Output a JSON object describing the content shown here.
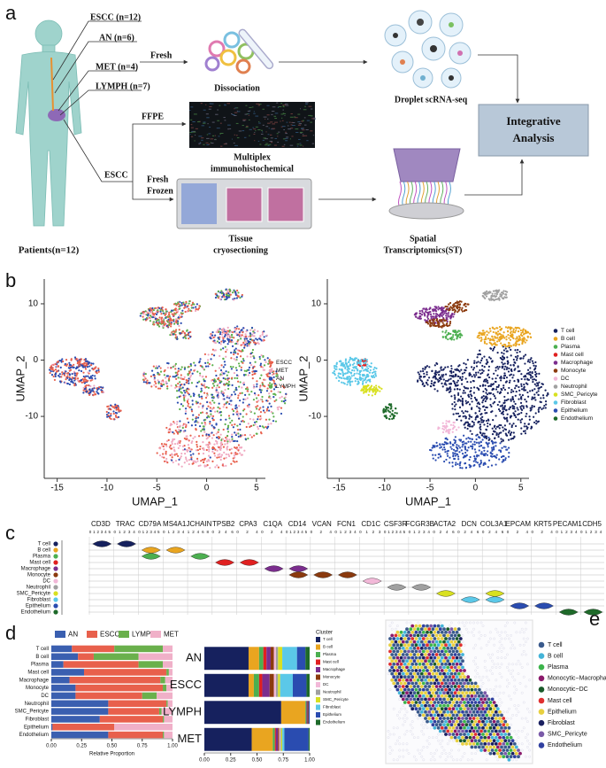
{
  "panel_labels": [
    "a",
    "b",
    "c",
    "d",
    "e"
  ],
  "panel_a": {
    "groups": [
      "ESCC (n=12)",
      "AN (n=6)",
      "MET (n=4)",
      "LYMPH (n=7)"
    ],
    "fresh": "Fresh",
    "dissociation": "Dissociation",
    "droplet": "Droplet scRNA-seq",
    "integrative": [
      "Integrative",
      "Analysis"
    ],
    "ffpe": "FFPE",
    "multiplex": [
      "Multiplex",
      "immunohistochemical"
    ],
    "escc": "ESCC",
    "fresh_frozen": [
      "Fresh",
      "Frozen"
    ],
    "tissue": [
      "Tissue",
      "cryosectioning"
    ],
    "spatial": [
      "Spatial",
      "Transcriptomics(ST)"
    ],
    "patients": "Patients(n=12)"
  },
  "chart_data": [
    {
      "type": "scatter",
      "xlabel": "UMAP_1",
      "ylabel": "UMAP_2",
      "xlim": [
        -16.3,
        5.9
      ],
      "ylim": [
        -21,
        14.4
      ],
      "xticks": [
        -15,
        -10,
        -5,
        0,
        5
      ],
      "yticks": [
        -10,
        0,
        10
      ],
      "legend": [
        {
          "name": "ESCC",
          "color": "#e8604c"
        },
        {
          "name": "MET",
          "color": "#f0a8c0"
        },
        {
          "name": "AN",
          "color": "#2a4cb0"
        },
        {
          "name": "LYMPH",
          "color": "#5cb04c"
        }
      ]
    },
    {
      "type": "scatter",
      "xlabel": "UMAP_1",
      "ylabel": "UMAP_2",
      "xlim": [
        -16.3,
        5.9
      ],
      "ylim": [
        -21,
        14.4
      ],
      "xticks": [
        -15,
        -10,
        -5,
        0,
        5
      ],
      "yticks": [
        -10,
        0,
        10
      ],
      "legend": [
        {
          "name": "T cell",
          "color": "#16215e"
        },
        {
          "name": "B cell",
          "color": "#e9a520"
        },
        {
          "name": "Plasma",
          "color": "#4caf50"
        },
        {
          "name": "Mast cell",
          "color": "#e02020"
        },
        {
          "name": "Macrophage",
          "color": "#7b2d8e"
        },
        {
          "name": "Monocyte",
          "color": "#8b3a0e"
        },
        {
          "name": "DC",
          "color": "#f2b8d8"
        },
        {
          "name": "Neutrophil",
          "color": "#a0a0a0"
        },
        {
          "name": "SMC_Pericyte",
          "color": "#d8e020"
        },
        {
          "name": "Fibroblast",
          "color": "#5bc8e8"
        },
        {
          "name": "Epithelium",
          "color": "#2a4cb0"
        },
        {
          "name": "Endothelium",
          "color": "#1e6a2a"
        }
      ]
    },
    {
      "type": "violin",
      "genes": [
        "CD3D",
        "TRAC",
        "CD79A",
        "MS4A1",
        "JCHAIN",
        "TPSB2",
        "CPA3",
        "C1QA",
        "CD14",
        "VCAN",
        "FCN1",
        "CD1C",
        "CSF3R",
        "FCGR3B",
        "ACTA2",
        "DCN",
        "COL3A1",
        "EPCAM",
        "KRT5",
        "PECAM1",
        "CDH5"
      ],
      "gene_ticks": [
        [
          0,
          1,
          2,
          3,
          4,
          5
        ],
        [
          0,
          1,
          2,
          3,
          4
        ],
        [
          0,
          1,
          2,
          3,
          4,
          5
        ],
        [
          0,
          1,
          2,
          3,
          4
        ],
        [
          1,
          2,
          4,
          6,
          8
        ],
        [
          0,
          2,
          4,
          6
        ],
        [
          0,
          2,
          4
        ],
        [
          0,
          2,
          4
        ],
        [
          0,
          1,
          2,
          3,
          4,
          5
        ],
        [
          0,
          2,
          4
        ],
        [
          0,
          1,
          2,
          3,
          4
        ],
        [
          0,
          1,
          2,
          3
        ],
        [
          0,
          1,
          2,
          3,
          4,
          5
        ],
        [
          0,
          1,
          2,
          3,
          4
        ],
        [
          0,
          2,
          4,
          6
        ],
        [
          0,
          2,
          4,
          6
        ],
        [
          0,
          2,
          4,
          6
        ],
        [
          0,
          2,
          4
        ],
        [
          0,
          2,
          4
        ],
        [
          0,
          1,
          2,
          3,
          4
        ],
        [
          0,
          1,
          2,
          3,
          4
        ]
      ],
      "cell_types": [
        "T cell",
        "B cell",
        "Plasma",
        "Mast cell",
        "Macrophage",
        "Monocyte",
        "DC",
        "Neutrophil",
        "SMC_Pericyte",
        "Fibroblast",
        "Epithelium",
        "Endothelium"
      ],
      "colors": [
        "#16215e",
        "#e9a520",
        "#4caf50",
        "#e02020",
        "#7b2d8e",
        "#8b3a0e",
        "#f2b8d8",
        "#a0a0a0",
        "#d8e020",
        "#5bc8e8",
        "#2a4cb0",
        "#1e6a2a"
      ]
    },
    {
      "type": "bar",
      "orientation": "horizontal",
      "stacked": true,
      "categories": [
        "T cell",
        "B cell",
        "Plasma",
        "Mast cell",
        "Macrophage",
        "Monocyte",
        "DC",
        "Neutrophil",
        "SMC_Pericyte",
        "Fibroblast",
        "Epithelium",
        "Endothelium"
      ],
      "series": [
        {
          "name": "AN",
          "color": "#3a5fb0",
          "values": [
            0.17,
            0.22,
            0.1,
            0.27,
            0.15,
            0.2,
            0.2,
            0.47,
            0.47,
            0.4,
            0.01,
            0.47
          ]
        },
        {
          "name": "ESCC",
          "color": "#e8604c",
          "values": [
            0.35,
            0.13,
            0.62,
            0.68,
            0.75,
            0.72,
            0.55,
            0.48,
            0.42,
            0.52,
            0.51,
            0.45
          ]
        },
        {
          "name": "LYMPH",
          "color": "#6ab04c",
          "values": [
            0.4,
            0.37,
            0.2,
            0.02,
            0.04,
            0.03,
            0.12,
            0.01,
            0.02,
            0.01,
            0.0,
            0.01
          ]
        },
        {
          "name": "MET",
          "color": "#f0b0c8",
          "values": [
            0.08,
            0.28,
            0.08,
            0.03,
            0.06,
            0.05,
            0.13,
            0.04,
            0.09,
            0.07,
            0.48,
            0.07
          ]
        }
      ],
      "xlim": [
        0,
        1
      ],
      "xticks": [
        {
          "value": 0,
          "label": "0.00"
        },
        {
          "value": 0.25,
          "label": "0.25"
        },
        {
          "value": 0.5,
          "label": "0.50"
        },
        {
          "value": 0.75,
          "label": "0.75"
        },
        {
          "value": 1,
          "label": "1.00"
        }
      ],
      "xlabel": "Relative Proportion"
    },
    {
      "type": "bar",
      "orientation": "horizontal",
      "stacked": true,
      "legend_title": "Cluster",
      "categories": [
        "AN",
        "ESCC",
        "LYMPH",
        "MET"
      ],
      "series": [
        {
          "name": "T cell",
          "color": "#16215e",
          "values": [
            0.42,
            0.42,
            0.73,
            0.45
          ]
        },
        {
          "name": "B cell",
          "color": "#e9a520",
          "values": [
            0.1,
            0.05,
            0.23,
            0.2
          ]
        },
        {
          "name": "Plasma",
          "color": "#4caf50",
          "values": [
            0.04,
            0.05,
            0.01,
            0.02
          ]
        },
        {
          "name": "Mast cell",
          "color": "#e02020",
          "values": [
            0.03,
            0.03,
            0.0,
            0.01
          ]
        },
        {
          "name": "Macrophage",
          "color": "#7b2d8e",
          "values": [
            0.04,
            0.07,
            0.01,
            0.02
          ]
        },
        {
          "name": "Monocyte",
          "color": "#8b3a0e",
          "values": [
            0.03,
            0.04,
            0.01,
            0.01
          ]
        },
        {
          "name": "DC",
          "color": "#f2b8d8",
          "values": [
            0.02,
            0.02,
            0.0,
            0.01
          ]
        },
        {
          "name": "Neutrophil",
          "color": "#a0a0a0",
          "values": [
            0.02,
            0.02,
            0.0,
            0.01
          ]
        },
        {
          "name": "SMC_Pericyte",
          "color": "#d8e020",
          "values": [
            0.04,
            0.02,
            0.0,
            0.01
          ]
        },
        {
          "name": "Fibroblast",
          "color": "#5bc8e8",
          "values": [
            0.14,
            0.12,
            0.0,
            0.02
          ]
        },
        {
          "name": "Epithelium",
          "color": "#2a4cb0",
          "values": [
            0.08,
            0.13,
            0.01,
            0.23
          ]
        },
        {
          "name": "Endothelium",
          "color": "#1e6a2a",
          "values": [
            0.04,
            0.03,
            0.0,
            0.01
          ]
        }
      ],
      "xlim": [
        0,
        1
      ],
      "xticks": [
        {
          "value": 0,
          "label": "0.00"
        },
        {
          "value": 0.25,
          "label": "0.25"
        },
        {
          "value": 0.5,
          "label": "0.50"
        },
        {
          "value": 0.75,
          "label": "0.75"
        },
        {
          "value": 1,
          "label": "1.00"
        }
      ]
    },
    {
      "type": "spatial",
      "legend": [
        {
          "name": "T cell",
          "color": "#3a5a8c"
        },
        {
          "name": "B cell",
          "color": "#44b4d8"
        },
        {
          "name": "Plasma",
          "color": "#3cb44b"
        },
        {
          "name": "Monocytic−Macrophage",
          "color": "#8b1a6b"
        },
        {
          "name": "Monocytic−DC",
          "color": "#1a5a2a"
        },
        {
          "name": "Mast cell",
          "color": "#e03030"
        },
        {
          "name": "Epithelium",
          "color": "#e8d040"
        },
        {
          "name": "Fibroblast",
          "color": "#1a2060"
        },
        {
          "name": "SMC_Pericyte",
          "color": "#7a5aa8"
        },
        {
          "name": "Endothelium",
          "color": "#3040a0"
        }
      ]
    }
  ]
}
